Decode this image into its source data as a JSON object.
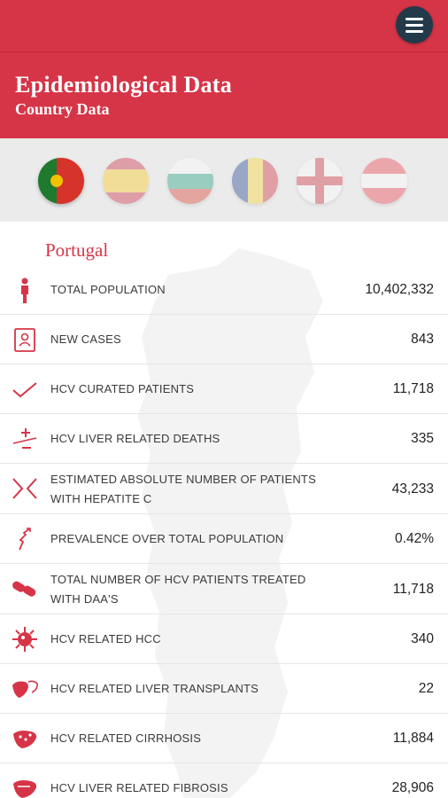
{
  "header": {
    "title": "Epidemiological Data",
    "subtitle": "Country Data"
  },
  "flags": [
    {
      "country": "Portugal",
      "active": true
    },
    {
      "country": "Spain",
      "active": false
    },
    {
      "country": "Bulgaria",
      "active": false
    },
    {
      "country": "Romania",
      "active": false
    },
    {
      "country": "England",
      "active": false
    },
    {
      "country": "Austria",
      "active": false
    }
  ],
  "colors": {
    "accent": "#d63547",
    "menu_button": "#233a4a"
  },
  "country_name": "Portugal",
  "stats": [
    {
      "label": "TOTAL POPULATION",
      "value": "10,402,332",
      "icon": "person-icon"
    },
    {
      "label": "NEW CASES",
      "value": "843",
      "icon": "id-card-icon"
    },
    {
      "label": "HCV CURATED PATIENTS",
      "value": "11,718",
      "icon": "checkmark-icon"
    },
    {
      "label": "HCV LIVER RELATED DEATHS",
      "value": "335",
      "icon": "plus-minus-icon"
    },
    {
      "label": "ESTIMATED ABSOLUTE NUMBER OF PATIENTS WITH HEPATITE C",
      "value": "43,233",
      "icon": "arrows-icon"
    },
    {
      "label": "PREVALENCE OVER TOTAL POPULATION",
      "value": "0.42%",
      "icon": "trend-icon"
    },
    {
      "label": "TOTAL NUMBER OF HCV PATIENTS TREATED WITH DAA'S",
      "value": "11,718",
      "icon": "pills-icon"
    },
    {
      "label": "HCV RELATED HCC",
      "value": "340",
      "icon": "virus-icon"
    },
    {
      "label": "HCV RELATED LIVER TRANSPLANTS",
      "value": "22",
      "icon": "liver-transplant-icon"
    },
    {
      "label": "HCV RELATED CIRRHOSIS",
      "value": "11,884",
      "icon": "cirrhosis-icon"
    },
    {
      "label": "HCV LIVER RELATED FIBROSIS",
      "value": "28,906",
      "icon": "fibrosis-icon"
    }
  ]
}
